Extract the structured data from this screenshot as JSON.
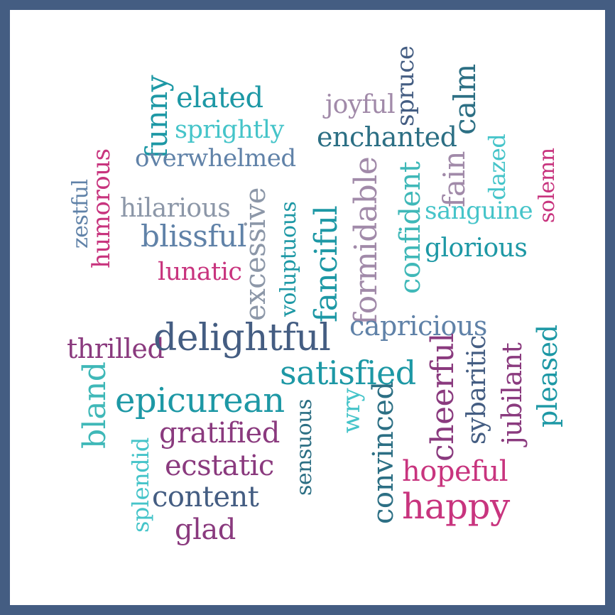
{
  "colors": {
    "frame": "#445d82",
    "navy": "#445d82",
    "teal": "#1d98a5",
    "cyan": "#45c4c9",
    "magenta": "#c8347e",
    "purple": "#8a3a7e",
    "slate": "#6082a8",
    "grey": "#8c97a8",
    "mauve": "#a18aa9",
    "aqua": "#3fb8b8",
    "darkteal": "#2c6f84"
  },
  "words": [
    {
      "text": "funny",
      "color": "teal"
    },
    {
      "text": "elated",
      "color": "teal"
    },
    {
      "text": "sprightly",
      "color": "cyan"
    },
    {
      "text": "overwhelmed",
      "color": "slate"
    },
    {
      "text": "zestful",
      "color": "slate"
    },
    {
      "text": "humorous",
      "color": "magenta"
    },
    {
      "text": "hilarious",
      "color": "grey"
    },
    {
      "text": "blissful",
      "color": "slate"
    },
    {
      "text": "lunatic",
      "color": "magenta"
    },
    {
      "text": "excessive",
      "color": "grey"
    },
    {
      "text": "voluptuous",
      "color": "teal"
    },
    {
      "text": "joyful",
      "color": "mauve"
    },
    {
      "text": "spruce",
      "color": "navy"
    },
    {
      "text": "calm",
      "color": "darkteal"
    },
    {
      "text": "enchanted",
      "color": "darkteal"
    },
    {
      "text": "fain",
      "color": "mauve"
    },
    {
      "text": "dazed",
      "color": "cyan"
    },
    {
      "text": "solemn",
      "color": "magenta"
    },
    {
      "text": "fanciful",
      "color": "teal"
    },
    {
      "text": "formidable",
      "color": "mauve"
    },
    {
      "text": "confident",
      "color": "aqua"
    },
    {
      "text": "sanguine",
      "color": "cyan"
    },
    {
      "text": "glorious",
      "color": "teal"
    },
    {
      "text": "capricious",
      "color": "slate"
    },
    {
      "text": "thrilled",
      "color": "purple"
    },
    {
      "text": "delightful",
      "color": "navy"
    },
    {
      "text": "satisfied",
      "color": "teal"
    },
    {
      "text": "bland",
      "color": "aqua"
    },
    {
      "text": "epicurean",
      "color": "teal"
    },
    {
      "text": "gratified",
      "color": "purple"
    },
    {
      "text": "splendid",
      "color": "cyan"
    },
    {
      "text": "ecstatic",
      "color": "purple"
    },
    {
      "text": "sensuous",
      "color": "darkteal"
    },
    {
      "text": "wry",
      "color": "cyan"
    },
    {
      "text": "convinced",
      "color": "darkteal"
    },
    {
      "text": "cheerful",
      "color": "purple"
    },
    {
      "text": "sybaritic",
      "color": "navy"
    },
    {
      "text": "jubilant",
      "color": "purple"
    },
    {
      "text": "pleased",
      "color": "teal"
    },
    {
      "text": "content",
      "color": "navy"
    },
    {
      "text": "hopeful",
      "color": "magenta"
    },
    {
      "text": "glad",
      "color": "purple"
    },
    {
      "text": "happy",
      "color": "magenta"
    }
  ]
}
